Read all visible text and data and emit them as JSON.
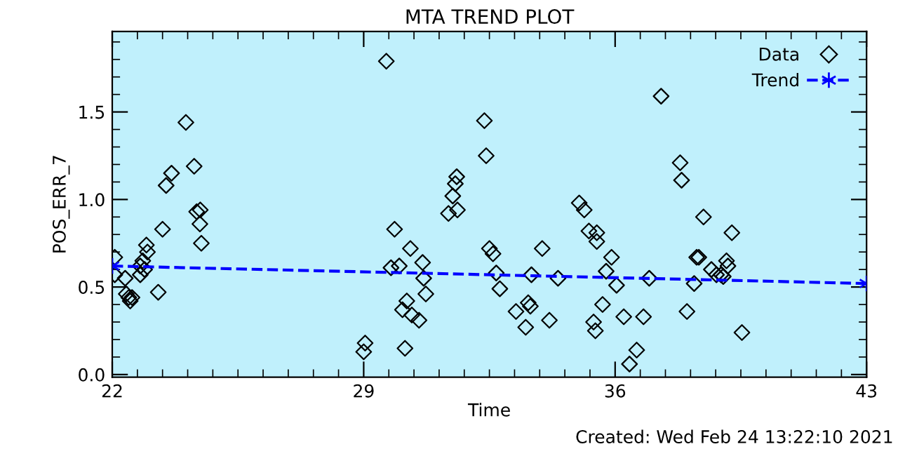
{
  "chart_data": {
    "type": "scatter",
    "title": "MTA TREND PLOT",
    "xlabel": "Time",
    "ylabel": "POS_ERR_7",
    "xlim": [
      22,
      43
    ],
    "xticks": [
      22,
      29,
      36,
      43
    ],
    "ylim": [
      -0.015,
      1.96
    ],
    "yticks": [
      {
        "value": 0,
        "label": "0.0"
      },
      0.5,
      {
        "value": 1,
        "label": "1.0"
      },
      1.5
    ],
    "grid": false,
    "legend": "top right",
    "annotations": [
      "Created: Wed Feb 24 13:22:10 2021"
    ],
    "series": [
      {
        "name": "Data",
        "color": "#000000",
        "marker": "diamond",
        "x": [
          22.07,
          22.07,
          22.36,
          22.39,
          22.46,
          22.55,
          22.5,
          22.78,
          22.85,
          22.78,
          22.9,
          22.98,
          22.95,
          23.28,
          23.4,
          23.5,
          23.65,
          24.05,
          24.28,
          24.35,
          24.45,
          24.44,
          24.48,
          29.04,
          29.0,
          29.63,
          29.86,
          30.3,
          29.76,
          29.99,
          30.64,
          30.67,
          30.73,
          30.2,
          30.08,
          30.34,
          30.54,
          30.15,
          32.36,
          32.41,
          31.59,
          31.55,
          31.48,
          31.61,
          31.36,
          32.5,
          32.6,
          32.69,
          32.79,
          33.67,
          33.97,
          33.24,
          33.58,
          33.64,
          33.51,
          34.17,
          34.41,
          35.0,
          35.14,
          35.27,
          35.49,
          35.49,
          35.9,
          35.75,
          36.04,
          35.65,
          36.24,
          35.4,
          35.45,
          37.28,
          37.81,
          37.85,
          38.46,
          39.25,
          36.79,
          36.6,
          36.4,
          36.95,
          38.0,
          38.2,
          38.27,
          38.33,
          38.68,
          38.82,
          38.95,
          39.01,
          39.1,
          39.14,
          39.53
        ],
        "values": [
          0.67,
          0.57,
          0.55,
          0.46,
          0.44,
          0.44,
          0.42,
          0.62,
          0.65,
          0.57,
          0.6,
          0.7,
          0.74,
          0.47,
          0.83,
          1.08,
          1.15,
          1.44,
          1.19,
          0.93,
          0.94,
          0.86,
          0.75,
          0.18,
          0.13,
          1.79,
          0.83,
          0.72,
          0.61,
          0.62,
          0.64,
          0.55,
          0.46,
          0.42,
          0.37,
          0.34,
          0.31,
          0.15,
          1.45,
          1.25,
          1.13,
          1.09,
          1.02,
          0.94,
          0.92,
          0.72,
          0.69,
          0.58,
          0.49,
          0.57,
          0.72,
          0.36,
          0.41,
          0.39,
          0.27,
          0.31,
          0.55,
          0.98,
          0.94,
          0.82,
          0.81,
          0.76,
          0.67,
          0.59,
          0.51,
          0.4,
          0.33,
          0.3,
          0.25,
          1.59,
          1.21,
          1.11,
          0.9,
          0.81,
          0.33,
          0.14,
          0.06,
          0.55,
          0.36,
          0.52,
          0.67,
          0.67,
          0.6,
          0.57,
          0.57,
          0.56,
          0.65,
          0.62,
          0.24
        ]
      },
      {
        "name": "Trend",
        "type": "line",
        "color": "#0000ff",
        "marker": "cross",
        "line_style": "dashed",
        "x": [
          22,
          43
        ],
        "values": [
          0.62,
          0.52
        ]
      }
    ]
  }
}
